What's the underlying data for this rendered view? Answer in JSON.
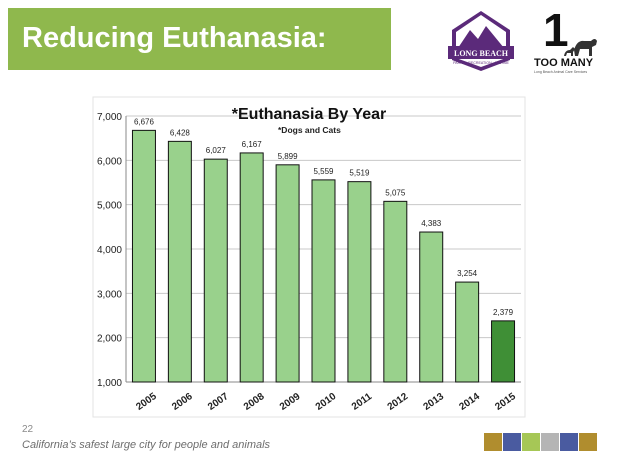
{
  "slide": {
    "title": "Reducing Euthanasia:",
    "page_number": "22",
    "footer": "California’s safest large city for people and animals"
  },
  "logos": {
    "long_beach": {
      "name": "LONG BEACH",
      "tagline": "PARKS • RECREATION • MARINE"
    },
    "too_many": {
      "number": "1",
      "name": "TOO MANY",
      "tagline": "Long Beach Animal Care Services"
    }
  },
  "colors": {
    "title_bar": "#8fb84d",
    "bar_default": "#99d18c",
    "bar_highlight": "#3f8f36",
    "footer_swatches": [
      "#b08d2e",
      "#4a5ba0",
      "#a6c756",
      "#b5b5b5",
      "#4a5ba0",
      "#b08d2e"
    ]
  },
  "chart_data": {
    "type": "bar",
    "title": "*Euthanasia By Year",
    "subtitle": "*Dogs and Cats",
    "categories": [
      "2005",
      "2006",
      "2007",
      "2008",
      "2009",
      "2010",
      "2011",
      "2012",
      "2013",
      "2014",
      "2015"
    ],
    "values": [
      6676,
      6428,
      6027,
      6167,
      5899,
      5559,
      5519,
      5075,
      4383,
      3254,
      2379
    ],
    "value_labels": [
      "6,676",
      "6,428",
      "6,027",
      "6,167",
      "5,899",
      "5,559",
      "5,519",
      "5,075",
      "4,383",
      "3,254",
      "2,379"
    ],
    "ylim": [
      1000,
      7000
    ],
    "yticks": [
      1000,
      2000,
      3000,
      4000,
      5000,
      6000,
      7000
    ],
    "ytick_labels": [
      "1,000",
      "2,000",
      "3,000",
      "4,000",
      "5,000",
      "6,000",
      "7,000"
    ],
    "highlight_index": 10,
    "grid": true,
    "xlabel": "",
    "ylabel": ""
  }
}
